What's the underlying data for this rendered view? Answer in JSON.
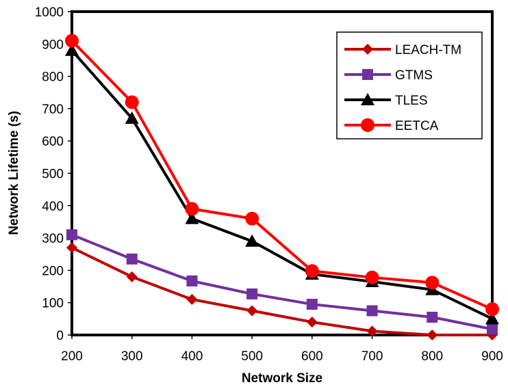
{
  "chart_data": {
    "type": "line",
    "title": "",
    "xlabel": "Network Size",
    "ylabel": "Network Lifetime (s)",
    "x": [
      200,
      300,
      400,
      500,
      600,
      700,
      800,
      900
    ],
    "xlim": [
      200,
      900
    ],
    "ylim": [
      0,
      1000
    ],
    "xticks": [
      "200",
      "300",
      "400",
      "500",
      "600",
      "700",
      "800",
      "900"
    ],
    "yticks": [
      "0",
      "100",
      "200",
      "300",
      "400",
      "500",
      "600",
      "700",
      "800",
      "900",
      "1000"
    ],
    "grid": false,
    "legend_position": "top-right",
    "series": [
      {
        "name": "LEACH-TM",
        "color": "#c00000",
        "marker": "diamond",
        "values": [
          270,
          180,
          110,
          75,
          40,
          12,
          0,
          0
        ]
      },
      {
        "name": "GTMS",
        "color": "#7030a0",
        "marker": "square",
        "values": [
          310,
          235,
          167,
          127,
          95,
          75,
          55,
          18
        ]
      },
      {
        "name": "TLES",
        "color": "#000000",
        "marker": "triangle",
        "values": [
          880,
          670,
          360,
          290,
          188,
          165,
          140,
          50
        ]
      },
      {
        "name": "EETCA",
        "color": "#ff0000",
        "marker": "circle",
        "values": [
          910,
          720,
          390,
          360,
          198,
          178,
          162,
          80
        ]
      }
    ]
  }
}
